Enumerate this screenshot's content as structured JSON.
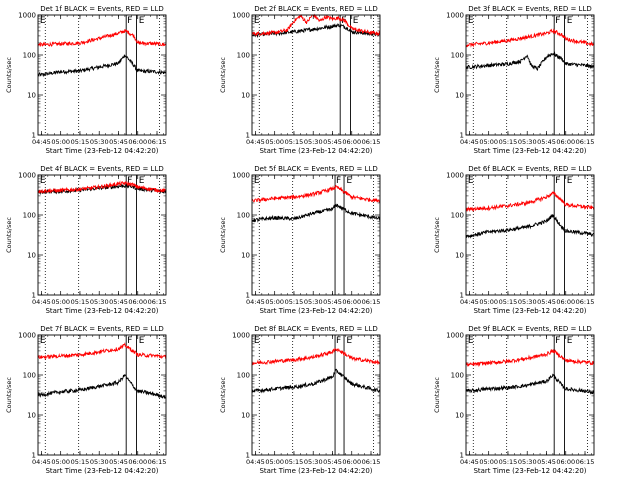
{
  "colors": {
    "events": "#000000",
    "lld": "#ff0000",
    "background": "#ffffff",
    "axis": "#000000"
  },
  "chart_data": [
    {
      "type": "line",
      "title": "Det 1f BLACK = Events, RED = LLD",
      "ylabel": "Counts/sec",
      "xlabel": "Start Time (23-Feb-12 04:42:20)",
      "yscale": "log",
      "ylim": [
        1,
        1000
      ],
      "ytick_labels": [
        "1",
        "10",
        "100",
        "1000"
      ],
      "xlim": [
        "04:42:20",
        "06:22:00"
      ],
      "xtick_labels": [
        "04:45",
        "05:00",
        "05:15",
        "05:30",
        "05:45",
        "06:00",
        "06:15"
      ],
      "dotted_lines": [
        "04:48",
        "05:14",
        "06:17"
      ],
      "solid_lines": [
        "05:51",
        "05:59"
      ],
      "markers": [
        {
          "text": "E",
          "at": "04:43"
        },
        {
          "text": "F",
          "at": "05:51"
        },
        {
          "text": "E",
          "at": "06:00"
        }
      ],
      "series": [
        {
          "name": "Events",
          "x": [
            "04:45",
            "05:00",
            "05:15",
            "05:30",
            "05:45",
            "05:50",
            "05:52",
            "05:57",
            "06:00",
            "06:15",
            "06:22"
          ],
          "values": [
            32,
            38,
            40,
            50,
            62,
            100,
            85,
            55,
            40,
            38,
            36
          ]
        },
        {
          "name": "LLD",
          "x": [
            "04:45",
            "05:00",
            "05:15",
            "05:30",
            "05:45",
            "05:50",
            "05:52",
            "05:57",
            "06:00",
            "06:15",
            "06:22"
          ],
          "values": [
            180,
            190,
            200,
            260,
            350,
            400,
            380,
            300,
            200,
            190,
            180
          ]
        }
      ]
    },
    {
      "type": "line",
      "title": "Det 2f BLACK = Events, RED = LLD",
      "ylabel": "Counts/sec",
      "xlabel": "Start Time (23-Feb-12 04:42:20)",
      "yscale": "log",
      "ylim": [
        1,
        1000
      ],
      "ytick_labels": [
        "1",
        "10",
        "100",
        "1000"
      ],
      "xlim": [
        "04:42:20",
        "06:22:00"
      ],
      "xtick_labels": [
        "04:45",
        "05:00",
        "05:15",
        "05:30",
        "05:45",
        "06:00",
        "06:15"
      ],
      "dotted_lines": [
        "04:48",
        "05:14",
        "06:17"
      ],
      "solid_lines": [
        "05:51",
        "05:59"
      ],
      "markers": [
        {
          "text": "E",
          "at": "04:43"
        },
        {
          "text": "F",
          "at": "05:51"
        },
        {
          "text": "E",
          "at": "06:00"
        }
      ],
      "series": [
        {
          "name": "Events",
          "x": [
            "04:45",
            "05:00",
            "05:15",
            "05:30",
            "05:45",
            "05:50",
            "05:52",
            "05:57",
            "06:00",
            "06:15",
            "06:22"
          ],
          "values": [
            320,
            340,
            380,
            440,
            520,
            560,
            540,
            460,
            380,
            340,
            320
          ]
        },
        {
          "name": "LLD",
          "x": [
            "04:45",
            "05:00",
            "05:10",
            "05:15",
            "05:20",
            "05:25",
            "05:30",
            "05:35",
            "05:40",
            "05:45",
            "05:50",
            "05:55",
            "06:00",
            "06:15",
            "06:22"
          ],
          "values": [
            340,
            360,
            420,
            700,
            950,
            650,
            1050,
            700,
            900,
            800,
            850,
            700,
            450,
            360,
            340
          ]
        }
      ]
    },
    {
      "type": "line",
      "title": "Det 3f BLACK = Events, RED = LLD",
      "ylabel": "Counts/sec",
      "xlabel": "Start Time (23-Feb-12 04:42:20)",
      "yscale": "log",
      "ylim": [
        1,
        1000
      ],
      "ytick_labels": [
        "1",
        "10",
        "100",
        "1000"
      ],
      "xlim": [
        "04:42:20",
        "06:22:00"
      ],
      "xtick_labels": [
        "04:45",
        "05:00",
        "05:15",
        "05:30",
        "05:45",
        "06:00",
        "06:15"
      ],
      "dotted_lines": [
        "04:48",
        "05:14",
        "06:17"
      ],
      "solid_lines": [
        "05:51",
        "05:59"
      ],
      "markers": [
        {
          "text": "E",
          "at": "04:43"
        },
        {
          "text": "F",
          "at": "05:51"
        },
        {
          "text": "E",
          "at": "06:00"
        }
      ],
      "series": [
        {
          "name": "Events",
          "x": [
            "04:45",
            "05:00",
            "05:15",
            "05:25",
            "05:30",
            "05:33",
            "05:38",
            "05:45",
            "05:50",
            "05:52",
            "05:57",
            "06:00",
            "06:15",
            "06:22"
          ],
          "values": [
            50,
            55,
            60,
            70,
            100,
            55,
            45,
            90,
            110,
            100,
            80,
            60,
            55,
            50
          ]
        },
        {
          "name": "LLD",
          "x": [
            "04:45",
            "05:00",
            "05:15",
            "05:30",
            "05:45",
            "05:50",
            "05:52",
            "05:57",
            "06:00",
            "06:15",
            "06:22"
          ],
          "values": [
            180,
            200,
            230,
            280,
            350,
            400,
            380,
            320,
            250,
            200,
            180
          ]
        }
      ]
    },
    {
      "type": "line",
      "title": "Det 4f BLACK = Events, RED = LLD",
      "ylabel": "Counts/sec",
      "xlabel": "Start Time (23-Feb-12 04:42:20)",
      "yscale": "log",
      "ylim": [
        1,
        1000
      ],
      "ytick_labels": [
        "1",
        "10",
        "100",
        "1000"
      ],
      "xlim": [
        "04:42:20",
        "06:22:00"
      ],
      "xtick_labels": [
        "04:45",
        "05:00",
        "05:15",
        "05:30",
        "05:45",
        "06:00",
        "06:15"
      ],
      "dotted_lines": [
        "04:48",
        "05:14",
        "06:17"
      ],
      "solid_lines": [
        "05:51",
        "05:59"
      ],
      "markers": [
        {
          "text": "E",
          "at": "04:43"
        },
        {
          "text": "F",
          "at": "05:51"
        },
        {
          "text": "E",
          "at": "06:00"
        }
      ],
      "series": [
        {
          "name": "Events",
          "x": [
            "04:45",
            "05:00",
            "05:15",
            "05:30",
            "05:45",
            "05:50",
            "05:55",
            "06:00",
            "06:15",
            "06:22"
          ],
          "values": [
            380,
            390,
            420,
            470,
            520,
            540,
            520,
            460,
            400,
            380
          ]
        },
        {
          "name": "LLD",
          "x": [
            "04:45",
            "05:00",
            "05:15",
            "05:30",
            "05:45",
            "05:50",
            "05:55",
            "06:00",
            "06:15",
            "06:22"
          ],
          "values": [
            400,
            410,
            440,
            500,
            600,
            620,
            590,
            500,
            420,
            400
          ]
        }
      ]
    },
    {
      "type": "line",
      "title": "Det 5f BLACK = Events, RED = LLD",
      "ylabel": "Counts/sec",
      "xlabel": "Start Time (23-Feb-12 04:42:20)",
      "yscale": "log",
      "ylim": [
        1,
        1000
      ],
      "ytick_labels": [
        "1",
        "10",
        "100",
        "1000"
      ],
      "xlim": [
        "04:42:20",
        "06:22:00"
      ],
      "xtick_labels": [
        "04:45",
        "05:00",
        "05:15",
        "05:30",
        "05:45",
        "06:00",
        "06:15"
      ],
      "dotted_lines": [
        "04:48",
        "05:14",
        "06:17"
      ],
      "solid_lines": [
        "05:47",
        "05:54"
      ],
      "markers": [
        {
          "text": "E",
          "at": "04:43"
        },
        {
          "text": "F",
          "at": "05:47"
        },
        {
          "text": "E",
          "at": "05:55"
        }
      ],
      "series": [
        {
          "name": "Events",
          "x": [
            "04:45",
            "05:00",
            "05:15",
            "05:30",
            "05:45",
            "05:48",
            "05:52",
            "06:00",
            "06:15",
            "06:22"
          ],
          "values": [
            75,
            85,
            80,
            110,
            140,
            180,
            150,
            110,
            90,
            80
          ]
        },
        {
          "name": "LLD",
          "x": [
            "04:45",
            "05:00",
            "05:15",
            "05:30",
            "05:45",
            "05:48",
            "05:52",
            "06:00",
            "06:15",
            "06:22"
          ],
          "values": [
            230,
            260,
            280,
            330,
            450,
            500,
            420,
            280,
            240,
            230
          ]
        }
      ]
    },
    {
      "type": "line",
      "title": "Det 6f BLACK = Events, RED = LLD",
      "ylabel": "Counts/sec",
      "xlabel": "Start Time (23-Feb-12 04:42:20)",
      "yscale": "log",
      "ylim": [
        1,
        1000
      ],
      "ytick_labels": [
        "1",
        "10",
        "100",
        "1000"
      ],
      "xlim": [
        "04:42:20",
        "06:22:00"
      ],
      "xtick_labels": [
        "04:45",
        "05:00",
        "05:15",
        "05:30",
        "05:45",
        "06:00",
        "06:15"
      ],
      "dotted_lines": [
        "04:48",
        "05:14",
        "06:17"
      ],
      "solid_lines": [
        "05:51",
        "05:59"
      ],
      "markers": [
        {
          "text": "E",
          "at": "04:43"
        },
        {
          "text": "F",
          "at": "05:51"
        },
        {
          "text": "E",
          "at": "06:00"
        }
      ],
      "series": [
        {
          "name": "Events",
          "x": [
            "04:45",
            "05:00",
            "05:15",
            "05:30",
            "05:45",
            "05:50",
            "05:52",
            "05:57",
            "06:00",
            "06:15",
            "06:22"
          ],
          "values": [
            30,
            38,
            42,
            50,
            70,
            100,
            80,
            50,
            40,
            35,
            32
          ]
        },
        {
          "name": "LLD",
          "x": [
            "04:45",
            "05:00",
            "05:15",
            "05:30",
            "05:45",
            "05:50",
            "05:52",
            "05:57",
            "06:00",
            "06:15",
            "06:22"
          ],
          "values": [
            140,
            150,
            170,
            200,
            280,
            350,
            320,
            230,
            180,
            160,
            150
          ]
        }
      ]
    },
    {
      "type": "line",
      "title": "Det 7f BLACK = Events, RED = LLD",
      "ylabel": "Counts/sec",
      "xlabel": "Start Time (23-Feb-12 04:42:20)",
      "yscale": "log",
      "ylim": [
        1,
        1000
      ],
      "ytick_labels": [
        "1",
        "10",
        "100",
        "1000"
      ],
      "xlim": [
        "04:42:20",
        "06:22:00"
      ],
      "xtick_labels": [
        "04:45",
        "05:00",
        "05:15",
        "05:30",
        "05:45",
        "06:00",
        "06:15"
      ],
      "dotted_lines": [
        "04:48",
        "05:14",
        "06:17"
      ],
      "solid_lines": [
        "05:51",
        "05:59"
      ],
      "markers": [
        {
          "text": "E",
          "at": "04:43"
        },
        {
          "text": "F",
          "at": "05:51"
        },
        {
          "text": "E",
          "at": "06:00"
        }
      ],
      "series": [
        {
          "name": "Events",
          "x": [
            "04:45",
            "05:00",
            "05:15",
            "05:30",
            "05:45",
            "05:50",
            "05:52",
            "05:57",
            "06:00",
            "06:15",
            "06:22"
          ],
          "values": [
            32,
            38,
            42,
            52,
            65,
            100,
            80,
            50,
            40,
            32,
            28
          ]
        },
        {
          "name": "LLD",
          "x": [
            "04:45",
            "05:00",
            "05:15",
            "05:30",
            "05:45",
            "05:50",
            "05:52",
            "05:57",
            "06:00",
            "06:15",
            "06:22"
          ],
          "values": [
            280,
            300,
            320,
            380,
            450,
            550,
            500,
            380,
            320,
            300,
            280
          ]
        }
      ]
    },
    {
      "type": "line",
      "title": "Det 8f BLACK = Events, RED = LLD",
      "ylabel": "Counts/sec",
      "xlabel": "Start Time (23-Feb-12 04:42:20)",
      "yscale": "log",
      "ylim": [
        1,
        1000
      ],
      "ytick_labels": [
        "1",
        "10",
        "100",
        "1000"
      ],
      "xlim": [
        "04:42:20",
        "06:22:00"
      ],
      "xtick_labels": [
        "04:45",
        "05:00",
        "05:15",
        "05:30",
        "05:45",
        "06:00",
        "06:15"
      ],
      "dotted_lines": [
        "04:48",
        "05:14",
        "06:17"
      ],
      "solid_lines": [
        "05:47",
        "05:54"
      ],
      "markers": [
        {
          "text": "E",
          "at": "04:43"
        },
        {
          "text": "F",
          "at": "05:47"
        },
        {
          "text": "E",
          "at": "05:55"
        }
      ],
      "series": [
        {
          "name": "Events",
          "x": [
            "04:45",
            "05:00",
            "05:15",
            "05:30",
            "05:45",
            "05:48",
            "05:52",
            "06:00",
            "06:15",
            "06:22"
          ],
          "values": [
            40,
            45,
            50,
            60,
            90,
            130,
            100,
            60,
            45,
            40
          ]
        },
        {
          "name": "LLD",
          "x": [
            "04:45",
            "05:00",
            "05:15",
            "05:30",
            "05:45",
            "05:48",
            "05:52",
            "06:00",
            "06:15",
            "06:22"
          ],
          "values": [
            200,
            220,
            240,
            280,
            380,
            450,
            380,
            260,
            220,
            200
          ]
        }
      ]
    },
    {
      "type": "line",
      "title": "Det 9f BLACK = Events, RED = LLD",
      "ylabel": "Counts/sec",
      "xlabel": "Start Time (23-Feb-12 04:42:20)",
      "yscale": "log",
      "ylim": [
        1,
        1000
      ],
      "ytick_labels": [
        "1",
        "10",
        "100",
        "1000"
      ],
      "xlim": [
        "04:42:20",
        "06:22:00"
      ],
      "xtick_labels": [
        "04:45",
        "05:00",
        "05:15",
        "05:30",
        "05:45",
        "06:00",
        "06:15"
      ],
      "dotted_lines": [
        "04:48",
        "05:14",
        "06:17"
      ],
      "solid_lines": [
        "05:51",
        "05:59"
      ],
      "markers": [
        {
          "text": "E",
          "at": "04:43"
        },
        {
          "text": "F",
          "at": "05:51"
        },
        {
          "text": "E",
          "at": "06:00"
        }
      ],
      "series": [
        {
          "name": "Events",
          "x": [
            "04:45",
            "05:00",
            "05:15",
            "05:30",
            "05:45",
            "05:50",
            "05:52",
            "05:57",
            "06:00",
            "06:15",
            "06:22"
          ],
          "values": [
            40,
            45,
            48,
            55,
            70,
            100,
            85,
            55,
            45,
            40,
            36
          ]
        },
        {
          "name": "LLD",
          "x": [
            "04:45",
            "05:00",
            "05:15",
            "05:30",
            "05:45",
            "05:50",
            "05:52",
            "05:57",
            "06:00",
            "06:15",
            "06:22"
          ],
          "values": [
            180,
            200,
            220,
            260,
            330,
            400,
            370,
            280,
            230,
            210,
            200
          ]
        }
      ]
    }
  ]
}
